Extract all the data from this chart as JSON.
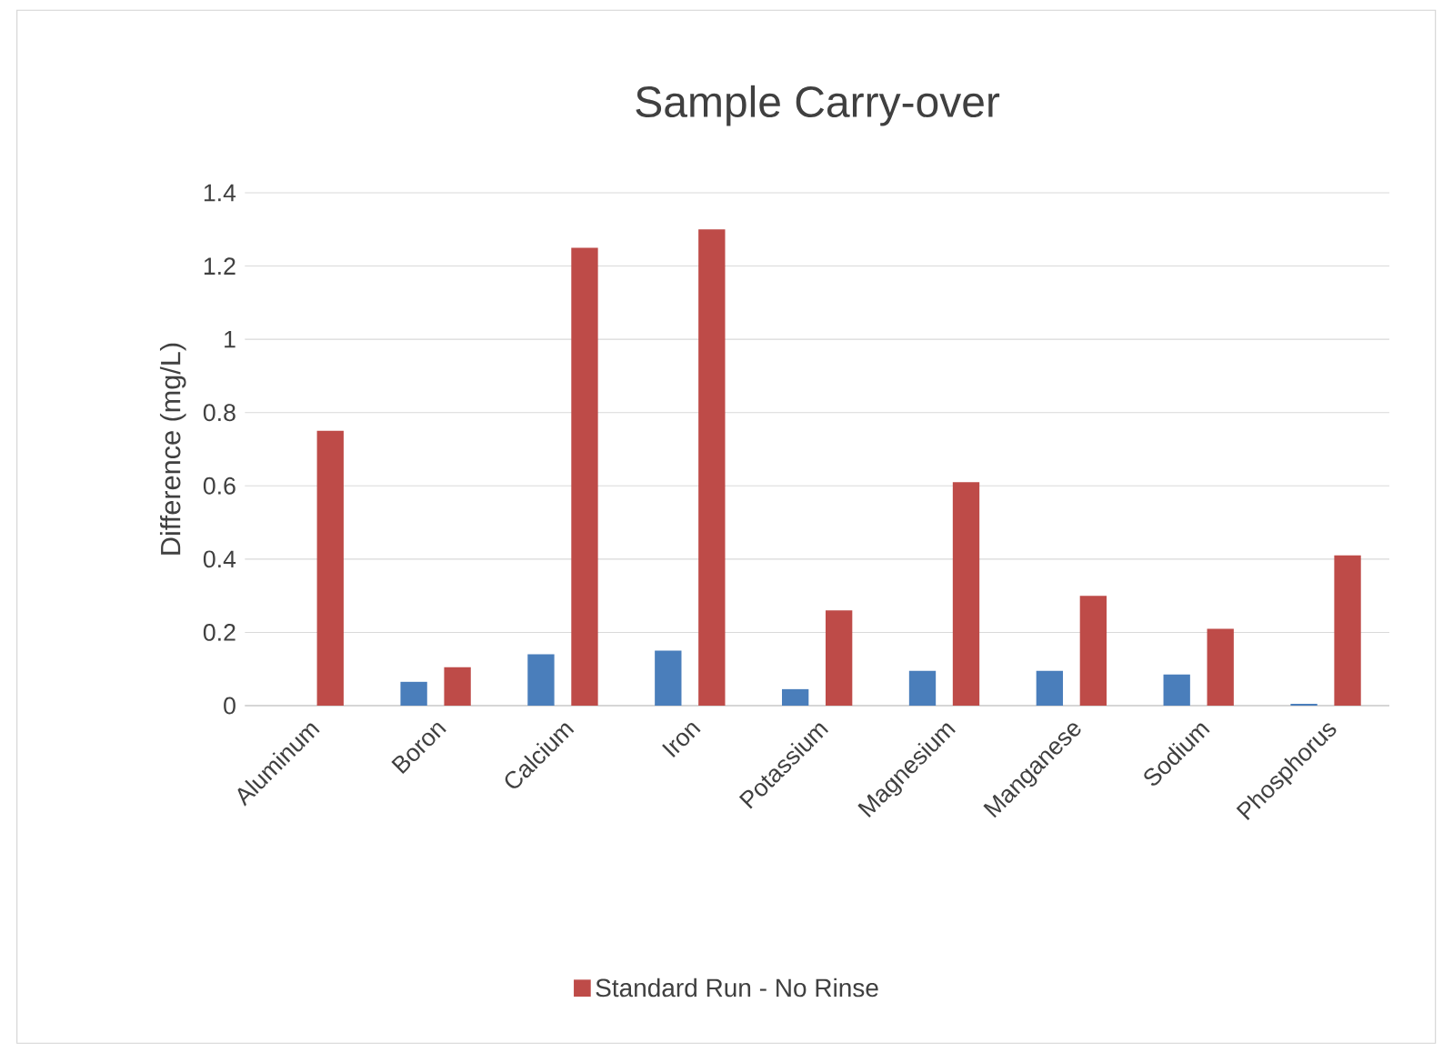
{
  "chart_data": {
    "type": "bar",
    "title": "Sample Carry-over",
    "ylabel": "Difference (mg/L)",
    "categories": [
      "Aluminum",
      "Boron",
      "Calcium",
      "Iron",
      "Potassium",
      "Magnesium",
      "Manganese",
      "Sodium",
      "Phosphorus"
    ],
    "series": [
      {
        "color": "#4a7ebb",
        "values": [
          0,
          0.065,
          0.14,
          0.15,
          0.045,
          0.095,
          0.095,
          0.085,
          0.005
        ]
      },
      {
        "name": "Standard Run - No Rinse",
        "color": "#be4b48",
        "values": [
          0.75,
          0.105,
          1.25,
          1.3,
          0.26,
          0.61,
          0.3,
          0.21,
          0.41
        ]
      }
    ],
    "ylim": [
      0,
      1.4
    ],
    "yticks": [
      0,
      0.2,
      0.4,
      0.6,
      0.8,
      1,
      1.2,
      1.4
    ],
    "grid": "y",
    "legend": "bottom"
  }
}
